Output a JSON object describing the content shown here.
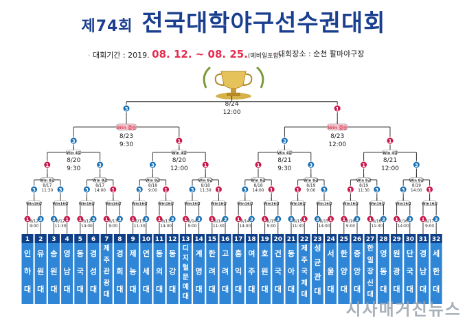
{
  "header": {
    "title_prefix": "제74회",
    "title_main": "전국대학야구선수권대회"
  },
  "info": {
    "period_label": "대회기간 : 2019.",
    "period_start": "08. 12. ~ 08. 25.",
    "period_note": "(예비일포함)",
    "venue_label": "대회장소 : 순천 팔마야구장"
  },
  "final": {
    "date": "8/24",
    "time": "12:00",
    "left_seed": "3",
    "right_seed": "1"
  },
  "semis": [
    {
      "date": "8/23",
      "time": "9:30",
      "badge": "Win 결승",
      "left_seed": "3",
      "right_seed": "1"
    },
    {
      "date": "8/23",
      "time": "12:00",
      "badge": "Win 결승",
      "left_seed": "3",
      "right_seed": "1"
    }
  ],
  "quarters": [
    {
      "date": "8/20",
      "time": "9:30",
      "badge": "Win 4강",
      "left_seed": "1",
      "right_seed": "3"
    },
    {
      "date": "8/20",
      "time": "12:00",
      "badge": "Win 4강",
      "left_seed": "3",
      "right_seed": "1"
    },
    {
      "date": "8/21",
      "time": "9:30",
      "badge": "Win 4강",
      "left_seed": "1",
      "right_seed": "3"
    },
    {
      "date": "8/21",
      "time": "12:00",
      "badge": "Win 4강",
      "left_seed": "1",
      "right_seed": "3"
    }
  ],
  "round16": [
    {
      "date": "8/17",
      "time": "11:30",
      "badge": "Win 8강",
      "left_seed": "3",
      "right_seed": "3"
    },
    {
      "date": "8/17",
      "time": "14:00",
      "badge": "Win 8강",
      "left_seed": "3",
      "right_seed": "1"
    },
    {
      "date": "8/18",
      "time": "9:00",
      "badge": "Win 8강",
      "left_seed": "3",
      "right_seed": "1"
    },
    {
      "date": "8/18",
      "time": "11:30",
      "badge": "Win 8강",
      "left_seed": "3",
      "right_seed": "1"
    },
    {
      "date": "8/18",
      "time": "14:00",
      "badge": "Win 8강",
      "left_seed": "3",
      "right_seed": "1"
    },
    {
      "date": "8/19",
      "time": "9:00",
      "badge": "Win 8강",
      "left_seed": "1",
      "right_seed": "3"
    },
    {
      "date": "8/19",
      "time": "11:30",
      "badge": "Win 8강",
      "left_seed": "1",
      "right_seed": "3"
    },
    {
      "date": "8/19",
      "time": "14:00",
      "badge": "Win 8강",
      "left_seed": "3",
      "right_seed": "1"
    }
  ],
  "round32": [
    {
      "date": "8/12",
      "time": "9:00",
      "badge": "Win16강",
      "left_seed": "1",
      "right_seed": "3"
    },
    {
      "date": "8/12",
      "time": "11:30",
      "badge": "Win16강",
      "left_seed": "3",
      "right_seed": "1"
    },
    {
      "date": "8/12",
      "time": "14:00",
      "badge": "Win16강",
      "left_seed": "1",
      "right_seed": "3"
    },
    {
      "date": "8/13",
      "time": "9:00",
      "badge": "Win16강",
      "left_seed": "1",
      "right_seed": "3"
    },
    {
      "date": "8/13",
      "time": "11:30",
      "badge": "Win16강",
      "left_seed": "1",
      "right_seed": "3"
    },
    {
      "date": "8/13",
      "time": "14:00",
      "badge": "Win16강",
      "left_seed": "1",
      "right_seed": "3"
    },
    {
      "date": "8/14",
      "time": "9:00",
      "badge": "Win16강",
      "left_seed": "1",
      "right_seed": "3"
    },
    {
      "date": "8/14",
      "time": "11:30",
      "badge": "Win16강",
      "left_seed": "1",
      "right_seed": "3"
    },
    {
      "date": "8/14",
      "time": "14:00",
      "badge": "Win16강",
      "left_seed": "1",
      "right_seed": "3"
    },
    {
      "date": "8/15",
      "time": "9:00",
      "badge": "Win16강",
      "left_seed": "1",
      "right_seed": "3"
    },
    {
      "date": "8/15",
      "time": "11:30",
      "badge": "Win16강",
      "left_seed": "3",
      "right_seed": "1"
    },
    {
      "date": "8/15",
      "time": "14:00",
      "badge": "Win16강",
      "left_seed": "3",
      "right_seed": "1"
    },
    {
      "date": "8/16",
      "time": "9:00",
      "badge": "Win16강",
      "left_seed": "1",
      "right_seed": "3"
    },
    {
      "date": "8/16",
      "time": "11:30",
      "badge": "Win16강",
      "left_seed": "1",
      "right_seed": "3"
    },
    {
      "date": "8/16",
      "time": "14:00",
      "badge": "Win16강",
      "left_seed": "1",
      "right_seed": "3"
    },
    {
      "date": "8/17",
      "time": "9:00",
      "badge": "Win16강",
      "left_seed": "1",
      "right_seed": "3"
    }
  ],
  "teams": [
    {
      "num": "1",
      "name": "인하대"
    },
    {
      "num": "2",
      "name": "유원대"
    },
    {
      "num": "3",
      "name": "송원대"
    },
    {
      "num": "4",
      "name": "영남대"
    },
    {
      "num": "5",
      "name": "동국대"
    },
    {
      "num": "6",
      "name": "경성대"
    },
    {
      "num": "7",
      "name": "제주관광대"
    },
    {
      "num": "8",
      "name": "경희대"
    },
    {
      "num": "9",
      "name": "제농대"
    },
    {
      "num": "10",
      "name": "연세대"
    },
    {
      "num": "11",
      "name": "동의대"
    },
    {
      "num": "12",
      "name": "동강대"
    },
    {
      "num": "13",
      "name": "디지털문예대"
    },
    {
      "num": "14",
      "name": "계명대"
    },
    {
      "num": "15",
      "name": "한려대"
    },
    {
      "num": "16",
      "name": "고려대"
    },
    {
      "num": "17",
      "name": "홍익대"
    },
    {
      "num": "18",
      "name": "여주대"
    },
    {
      "num": "19",
      "name": "호원대"
    },
    {
      "num": "20",
      "name": "건국대"
    },
    {
      "num": "21",
      "name": "동아대"
    },
    {
      "num": "22",
      "name": "제주국제대"
    },
    {
      "num": "23",
      "name": "성균관대"
    },
    {
      "num": "24",
      "name": "서울대"
    },
    {
      "num": "25",
      "name": "한양대"
    },
    {
      "num": "26",
      "name": "중앙대"
    },
    {
      "num": "27",
      "name": "한일장신대"
    },
    {
      "num": "28",
      "name": "영동대"
    },
    {
      "num": "29",
      "name": "원광대"
    },
    {
      "num": "30",
      "name": "단국대"
    },
    {
      "num": "31",
      "name": "경남대"
    },
    {
      "num": "32",
      "name": "세한대"
    }
  ],
  "watermark": "시사매거진뉴스",
  "colors": {
    "title": "#1b3f8f",
    "accent_red": "#e52b50",
    "team_blue": "#2f86d6",
    "team_dark": "#0f3f86",
    "badge_red": "#d94b63",
    "seed_one": "#c9184a",
    "seed_three": "#1a6fb3",
    "line": "#333333"
  },
  "icons": {
    "trophy": "trophy-icon",
    "dot": "bullet-dot-icon"
  }
}
